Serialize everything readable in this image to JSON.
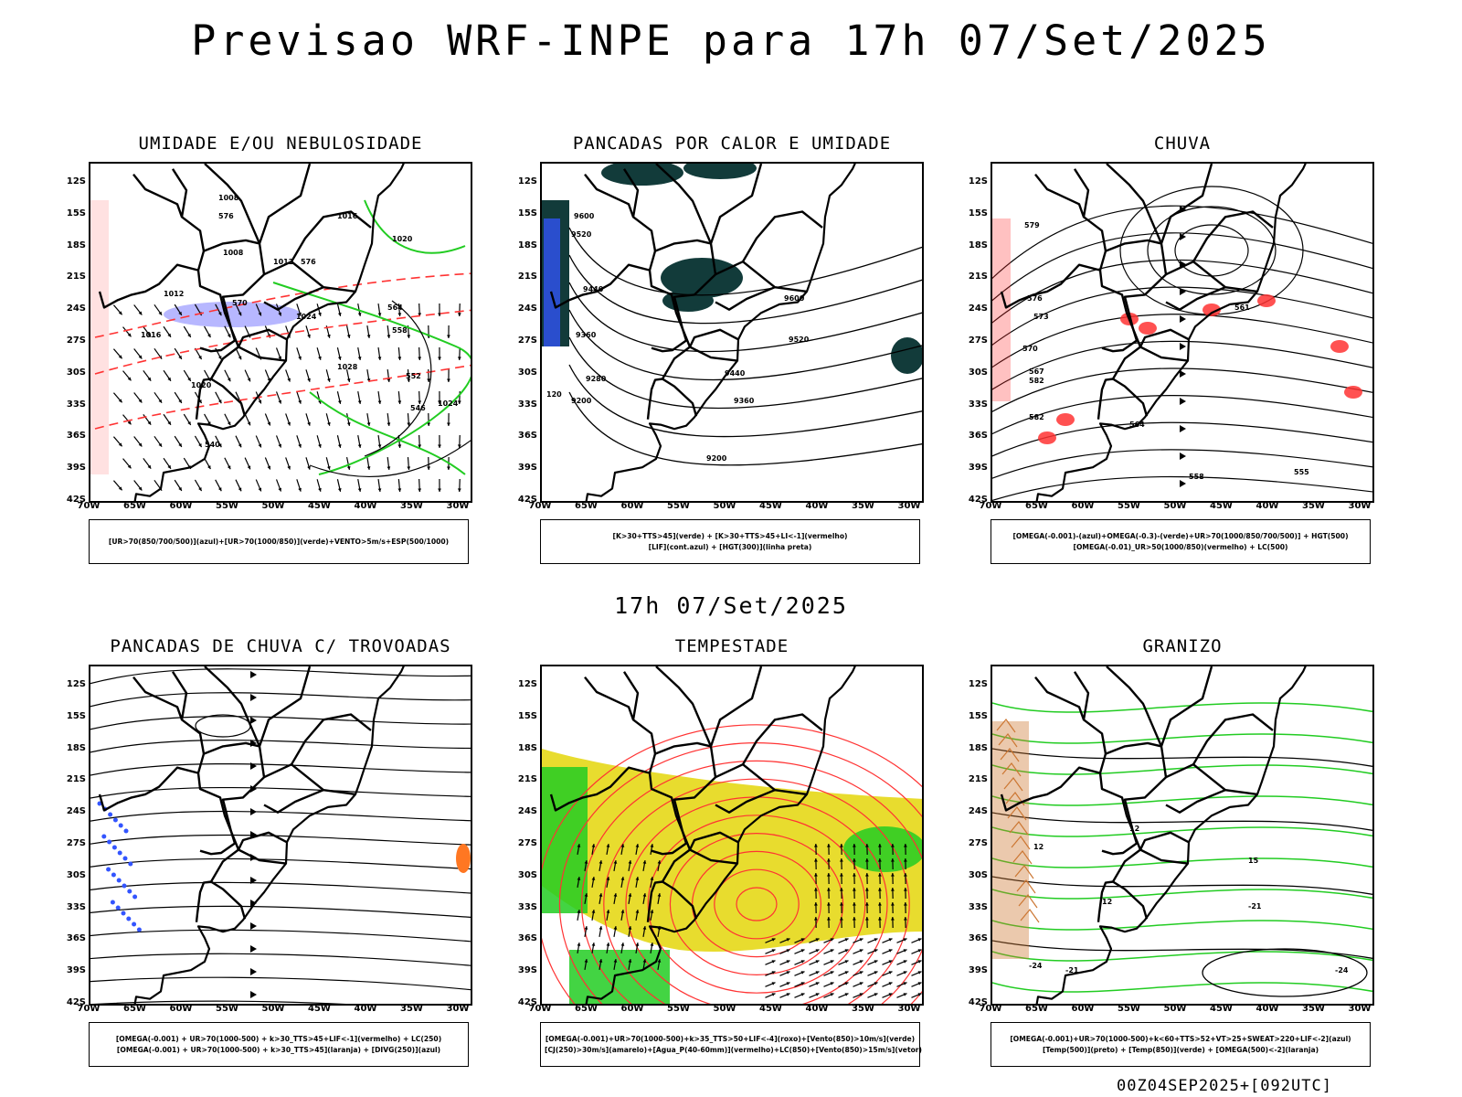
{
  "title": "Previsao WRF-INPE  para 17h 07/Set/2025",
  "mid_title": "17h 07/Set/2025",
  "footer": "00Z04SEP2025+[092UTC]",
  "lat_labels": [
    "12S",
    "15S",
    "18S",
    "21S",
    "24S",
    "27S",
    "30S",
    "33S",
    "36S",
    "39S",
    "42S"
  ],
  "lon_labels": [
    "70W",
    "65W",
    "60W",
    "55W",
    "50W",
    "45W",
    "40W",
    "35W",
    "30W"
  ],
  "panels": [
    {
      "title": "UMIDADE E/OU NEBULOSIDADE",
      "legend": [
        "[UR>70(850/700/500)](azul)+[UR>70(1000/850)](verde)+VENTO>5m/s+ESP(500/1000)"
      ],
      "labels": [
        "1008",
        "1008",
        "1012",
        "1012",
        "1016",
        "1016",
        "1020",
        "1020",
        "1024",
        "1024",
        "1028",
        "576",
        "576",
        "570",
        "564",
        "558",
        "552",
        "546",
        "540"
      ]
    },
    {
      "title": "PANCADAS POR CALOR E UMIDADE",
      "legend": [
        "[K>30+TTS>45](verde) + [K>30+TTS>45+LI<-1](vermelho)",
        "[LIF](cont.azul) + [HGT(300)](linha preta)"
      ],
      "labels": [
        "9600",
        "9520",
        "9440",
        "9360",
        "9280",
        "9200",
        "9600",
        "9520",
        "9440",
        "9360",
        "9200",
        "120"
      ]
    },
    {
      "title": "CHUVA",
      "legend": [
        "[OMEGA(-0.001)-(azul)+OMEGA(-0.3)-(verde)+UR>70(1000/850/700/500)] + HGT(500)",
        "[OMEGA(-0.01)_UR>50(1000/850)(vermelho) + LC(500)"
      ],
      "labels": [
        "582",
        "582",
        "579",
        "576",
        "573",
        "570",
        "567",
        "564",
        "561",
        "558",
        "555"
      ]
    },
    {
      "title": "PANCADAS DE CHUVA C/ TROVOADAS",
      "legend": [
        "[OMEGA(-0.001) + UR>70(1000-500) + k>30_TTS>45+LIF<-1](vermelho) + LC(250)",
        "[OMEGA(-0.001) + UR>70(1000-500) + k>30_TTS>45](laranja) + [DIVG(250)](azul)"
      ],
      "labels": []
    },
    {
      "title": "TEMPESTADE",
      "legend": [
        "[OMEGA(-0.001)+UR>70(1000-500)+k>35_TTS>50+LIF<-4](roxo)+[Vento(850)>10m/s](verde)",
        "[CJ(250)>30m/s](amarelo)+[Agua_P(40-60mm)](vermelho)+LC(850)+[Vento(850)>15m/s](vetor)"
      ],
      "labels": []
    },
    {
      "title": "GRANIZO",
      "legend": [
        "[OMEGA(-0.001)+UR>70(1000-500)+k<60+TTS>52+VT>25+SWEAT>220+LIF<-2](azul)",
        "[Temp(500)](preto) + [Temp(850)](verde) + [OMEGA(500)<-2](laranja)"
      ],
      "labels": [
        "12",
        "15",
        "-21",
        "12",
        "-21",
        "-24",
        "-24",
        "12"
      ]
    }
  ]
}
